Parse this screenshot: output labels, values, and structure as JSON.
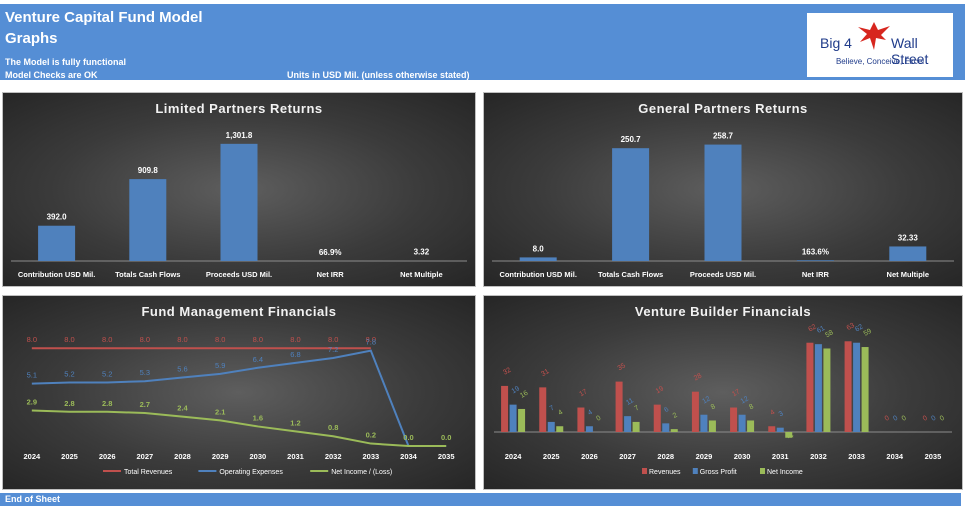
{
  "header": {
    "title": "Venture Capital Fund Model",
    "subtitle": "Graphs",
    "status_line1": "The Model is fully functional",
    "status_line2": "Model Checks are OK",
    "units": "Units in USD Mil. (unless otherwise stated)",
    "logo_left": "Big 4",
    "logo_right": "Wall Street",
    "logo_tagline": "Believe, Conceive, Excel"
  },
  "footer": {
    "text": "End of Sheet"
  },
  "colors": {
    "bar": "#4f81bd",
    "red": "#c0504d",
    "blue": "#4f81bd",
    "green": "#9bbb59",
    "header": "#558ed5"
  },
  "chart_data": [
    {
      "id": "lp",
      "type": "bar",
      "title": "Limited Partners Returns",
      "categories": [
        "Contribution USD Mil.",
        "Totals Cash Flows",
        "Proceeds USD Mil.",
        "Net IRR",
        "Net Multiple"
      ],
      "values": [
        392.0,
        909.8,
        1301.8,
        0.669,
        3.32
      ],
      "labels": [
        "392.0",
        "909.8",
        "1,301.8",
        "66.9%",
        "3.32"
      ],
      "ylim": [
        0,
        1400
      ]
    },
    {
      "id": "gp",
      "type": "bar",
      "title": "General Partners Returns",
      "categories": [
        "Contribution USD Mil.",
        "Totals Cash Flows",
        "Proceeds USD Mil.",
        "Net IRR",
        "Net Multiple"
      ],
      "values": [
        8.0,
        250.7,
        258.7,
        1.636,
        32.33
      ],
      "labels": [
        "8.0",
        "250.7",
        "258.7",
        "163.6%",
        "32.33"
      ],
      "ylim": [
        0,
        280
      ]
    },
    {
      "id": "fm",
      "type": "line",
      "title": "Fund Management Financials",
      "categories": [
        "2024",
        "2025",
        "2026",
        "2027",
        "2028",
        "2029",
        "2030",
        "2031",
        "2032",
        "2033",
        "2034",
        "2035"
      ],
      "series": [
        {
          "name": "Total Revenues",
          "color": "#c0504d",
          "values": [
            8.0,
            8.0,
            8.0,
            8.0,
            8.0,
            8.0,
            8.0,
            8.0,
            8.0,
            8.0,
            null,
            null
          ],
          "labels": [
            "8.0",
            "8.0",
            "8.0",
            "8.0",
            "8.0",
            "8.0",
            "8.0",
            "8.0",
            "8.0",
            "8.0",
            "",
            ""
          ]
        },
        {
          "name": "Operating Expenses",
          "color": "#4f81bd",
          "values": [
            5.1,
            5.2,
            5.2,
            5.3,
            5.6,
            5.9,
            6.4,
            6.8,
            7.2,
            7.8,
            0.0,
            0.0
          ],
          "labels": [
            "5.1",
            "5.2",
            "5.2",
            "5.3",
            "5.6",
            "5.9",
            "6.4",
            "6.8",
            "7.2",
            "7.8",
            "",
            ""
          ]
        },
        {
          "name": "Net Income / (Loss)",
          "color": "#9bbb59",
          "values": [
            2.9,
            2.8,
            2.8,
            2.7,
            2.4,
            2.1,
            1.6,
            1.2,
            0.8,
            0.2,
            0.0,
            0.0
          ],
          "labels": [
            "2.9",
            "2.8",
            "2.8",
            "2.7",
            "2.4",
            "2.1",
            "1.6",
            "1.2",
            "0.8",
            "0.2",
            "0.0",
            "0.0"
          ]
        }
      ],
      "ylim": [
        0,
        9
      ]
    },
    {
      "id": "vb",
      "type": "bar",
      "title": "Venture Builder Financials",
      "categories": [
        "2024",
        "2025",
        "2026",
        "2027",
        "2028",
        "2029",
        "2030",
        "2031",
        "2032",
        "2033",
        "2034",
        "2035"
      ],
      "series": [
        {
          "name": "Revenues",
          "color": "#c0504d",
          "values": [
            32,
            31,
            17,
            35,
            19,
            28,
            17,
            4,
            62,
            63,
            0,
            0
          ]
        },
        {
          "name": "Gross Profit",
          "color": "#4f81bd",
          "values": [
            19,
            7,
            4,
            11,
            6,
            12,
            12,
            3,
            61,
            62,
            0,
            0
          ]
        },
        {
          "name": "Net Income",
          "color": "#9bbb59",
          "values": [
            16,
            4,
            0,
            7,
            2,
            8,
            8,
            -4,
            58,
            59,
            0,
            0
          ]
        }
      ],
      "ylim": [
        -5,
        65
      ]
    }
  ]
}
